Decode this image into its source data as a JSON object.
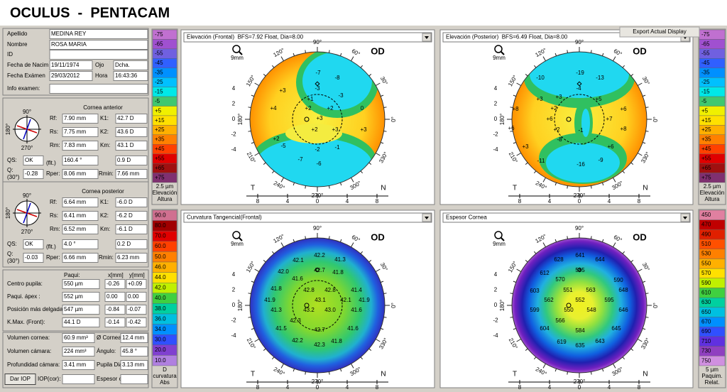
{
  "header": {
    "title": "OCULUS  -  PENTACAM"
  },
  "toolbar": {
    "export": "Export Actual Display"
  },
  "patient": {
    "surname_label": "Apellido",
    "surname": "MEDINA REY",
    "name_label": "Nombre",
    "name": "ROSA MARIA",
    "id_label": "ID",
    "birth_label": "Fecha de Nacim",
    "birth": "19/11/1974",
    "eye_label": "Ojo",
    "eye": "Dcha.",
    "exam_label": "Fecha Exámen",
    "exam_date": "29/03/2012",
    "time_label": "Hora",
    "time": "16:43:36",
    "info_label": "Info examen:"
  },
  "orientation": {
    "top": "90°",
    "left": "180°",
    "bottom": "270°"
  },
  "cornea_labels": {
    "rf": "Rf:",
    "rs": "Rs:",
    "rm": "Rm:",
    "k1": "K1:",
    "k2": "K2:",
    "km": "Km:",
    "qs": "QS:",
    "flt": "(flt.)",
    "q": "Q:",
    "q30": "(30°)",
    "rper": "Rper:",
    "rmin": "Rmin:"
  },
  "cornea_anterior": {
    "title": "Cornea anterior",
    "rf": "7.90 mm",
    "rs": "7.75 mm",
    "rm": "7.83 mm",
    "k1": "42.7 D",
    "k2": "43.6 D",
    "km": "43.1 D",
    "qs": "OK",
    "axis": "160.4 °",
    "astig": "0.9 D",
    "q": "-0.28",
    "rper": "8.06 mm",
    "rmin": "7.66 mm"
  },
  "cornea_posterior": {
    "title": "Cornea posterior",
    "rf": "6.64 mm",
    "rs": "6.41 mm",
    "rm": "6.52 mm",
    "k1": "-6.0 D",
    "k2": "-6.2 D",
    "km": "-6.1 D",
    "qs": "OK",
    "axis": "4.0 °",
    "astig": "0.2 D",
    "q": "-0.03",
    "rper": "6.66 mm",
    "rmin": "6.23 mm"
  },
  "pachy": {
    "headers": [
      "Paqui:",
      "x[mm]",
      "y[mm]"
    ],
    "rows": [
      [
        "Centro pupila:",
        "550 µm",
        "-0.26",
        "+0.09"
      ],
      [
        "Paqui. ápex :",
        "552 µm",
        "0.00",
        "0.00"
      ],
      [
        "Posición más delgada:",
        "547 µm",
        "-0.84",
        "-0.07"
      ],
      [
        "K.Max. (Front):",
        "44.1 D",
        "-0.14",
        "-0.42"
      ]
    ]
  },
  "volumes": {
    "rows": [
      [
        "Volumen cornea:",
        "60.9 mm³",
        "Ø Cornea:",
        "12.4 mm"
      ],
      [
        "Volumen cámara:",
        "224 mm³",
        "Ángulo:",
        "45.8 °"
      ],
      [
        "Profundidad cámara:",
        "3.41 mm",
        "Pupila Dia",
        "3.13 mm"
      ]
    ],
    "dar_iop": "Dar IOP",
    "iop_label": "IOP(cor):",
    "espesor_label": "Espesor c"
  },
  "elevation_scale": {
    "labels": [
      "-75",
      "-65",
      "-55",
      "-45",
      "-35",
      "-25",
      "-15",
      "-5",
      "+5",
      "+15",
      "+25",
      "+35",
      "+45",
      "+55",
      "+65",
      "+75"
    ],
    "colors": [
      "#c070d0",
      "#a050d0",
      "#7060e0",
      "#3060ff",
      "#0090ff",
      "#00c0ff",
      "#00e8e8",
      "#40c870",
      "#f0f000",
      "#ffe000",
      "#ffb000",
      "#ff8000",
      "#ff4000",
      "#e00000",
      "#a01010",
      "#803070"
    ],
    "footer": [
      "2.5 µm",
      "Elevación",
      "Altura"
    ]
  },
  "curvature_scale": {
    "labels": [
      "90.0",
      "80.0",
      "70.0",
      "60.0",
      "50.0",
      "46.0",
      "44.0",
      "42.0",
      "40.0",
      "38.0",
      "36.0",
      "34.0",
      "30.0",
      "20.0",
      "10.0"
    ],
    "colors": [
      "#d07090",
      "#a00000",
      "#e00000",
      "#ff4000",
      "#ff8000",
      "#ffb000",
      "#ffe000",
      "#c0f000",
      "#40d040",
      "#00d0a0",
      "#00c0e0",
      "#0090ff",
      "#3050ff",
      "#8040d0",
      "#b080e0"
    ],
    "footer": [
      "D",
      "curvatura",
      "Abs"
    ]
  },
  "thickness_scale": {
    "labels": [
      "450",
      "470",
      "490",
      "510",
      "530",
      "550",
      "570",
      "590",
      "610",
      "630",
      "650",
      "670",
      "690",
      "710",
      "730",
      "750"
    ],
    "colors": [
      "#e080a0",
      "#c00000",
      "#e02000",
      "#ff5000",
      "#ff8000",
      "#ffb000",
      "#ffe000",
      "#c0f000",
      "#40d040",
      "#00d0a0",
      "#00c0e0",
      "#0090ff",
      "#3050ff",
      "#6030e0",
      "#9040c0",
      "#d090e0"
    ],
    "footer": [
      "5 µm",
      "Paquim.",
      "Relat."
    ]
  },
  "map_common": {
    "eye": "OD",
    "zoom": "9mm",
    "angles": [
      "90°",
      "120°",
      "150°",
      "180°",
      "210°",
      "240°",
      "270°",
      "300°",
      "330°",
      "0°",
      "30°",
      "60°"
    ],
    "y_ticks": [
      "4",
      "2",
      "0",
      "-2",
      "-4"
    ],
    "x_ticks": [
      "8",
      "4",
      "0",
      "4",
      "8"
    ],
    "temporal": "T",
    "nasal": "N"
  },
  "maps": [
    {
      "title": "Elevación (Frontal)  BFS=7.92 Float, Dia=8.00",
      "values": [
        "-7",
        "-8",
        "-3",
        "+3",
        "-3",
        "+1",
        "0",
        "+4",
        "+2",
        "+2",
        "+3",
        "+2",
        "+3",
        "+3",
        "+2",
        "-5",
        "-2",
        "-1",
        "-7",
        "-6"
      ]
    },
    {
      "title": "Elevación (Posterior)  BFS=6.49 Float, Dia=8.00",
      "values": [
        "-10",
        "-19",
        "-13",
        "-4",
        "+3",
        "+3",
        "+5",
        "+8",
        "+2",
        "+7",
        "+6",
        "+6",
        "+6",
        "+2",
        "+8",
        "-1",
        "+3",
        "-8",
        "+6",
        "-11",
        "-16",
        "-9"
      ]
    },
    {
      "title": "Curvatura Tangencial(Frontal)",
      "values": [
        "42.2",
        "41.3",
        "42.1",
        "42.7",
        "42.0",
        "41.8",
        "41.6",
        "41.8",
        "42.8",
        "42.8",
        "41.4",
        "41.9",
        "43.1",
        "42.1",
        "41.9",
        "41.3",
        "43.2",
        "43.0",
        "41.6",
        "42.3",
        "42.7",
        "41.5",
        "41.6",
        "42.2",
        "42.3",
        "41.8"
      ]
    },
    {
      "title": "Espesor Cornea",
      "values": [
        "641",
        "628",
        "644",
        "612",
        "585",
        "590",
        "570",
        "603",
        "551",
        "563",
        "648",
        "562",
        "552",
        "595",
        "599",
        "550",
        "548",
        "646",
        "566",
        "604",
        "584",
        "645",
        "619",
        "635",
        "643"
      ]
    }
  ]
}
